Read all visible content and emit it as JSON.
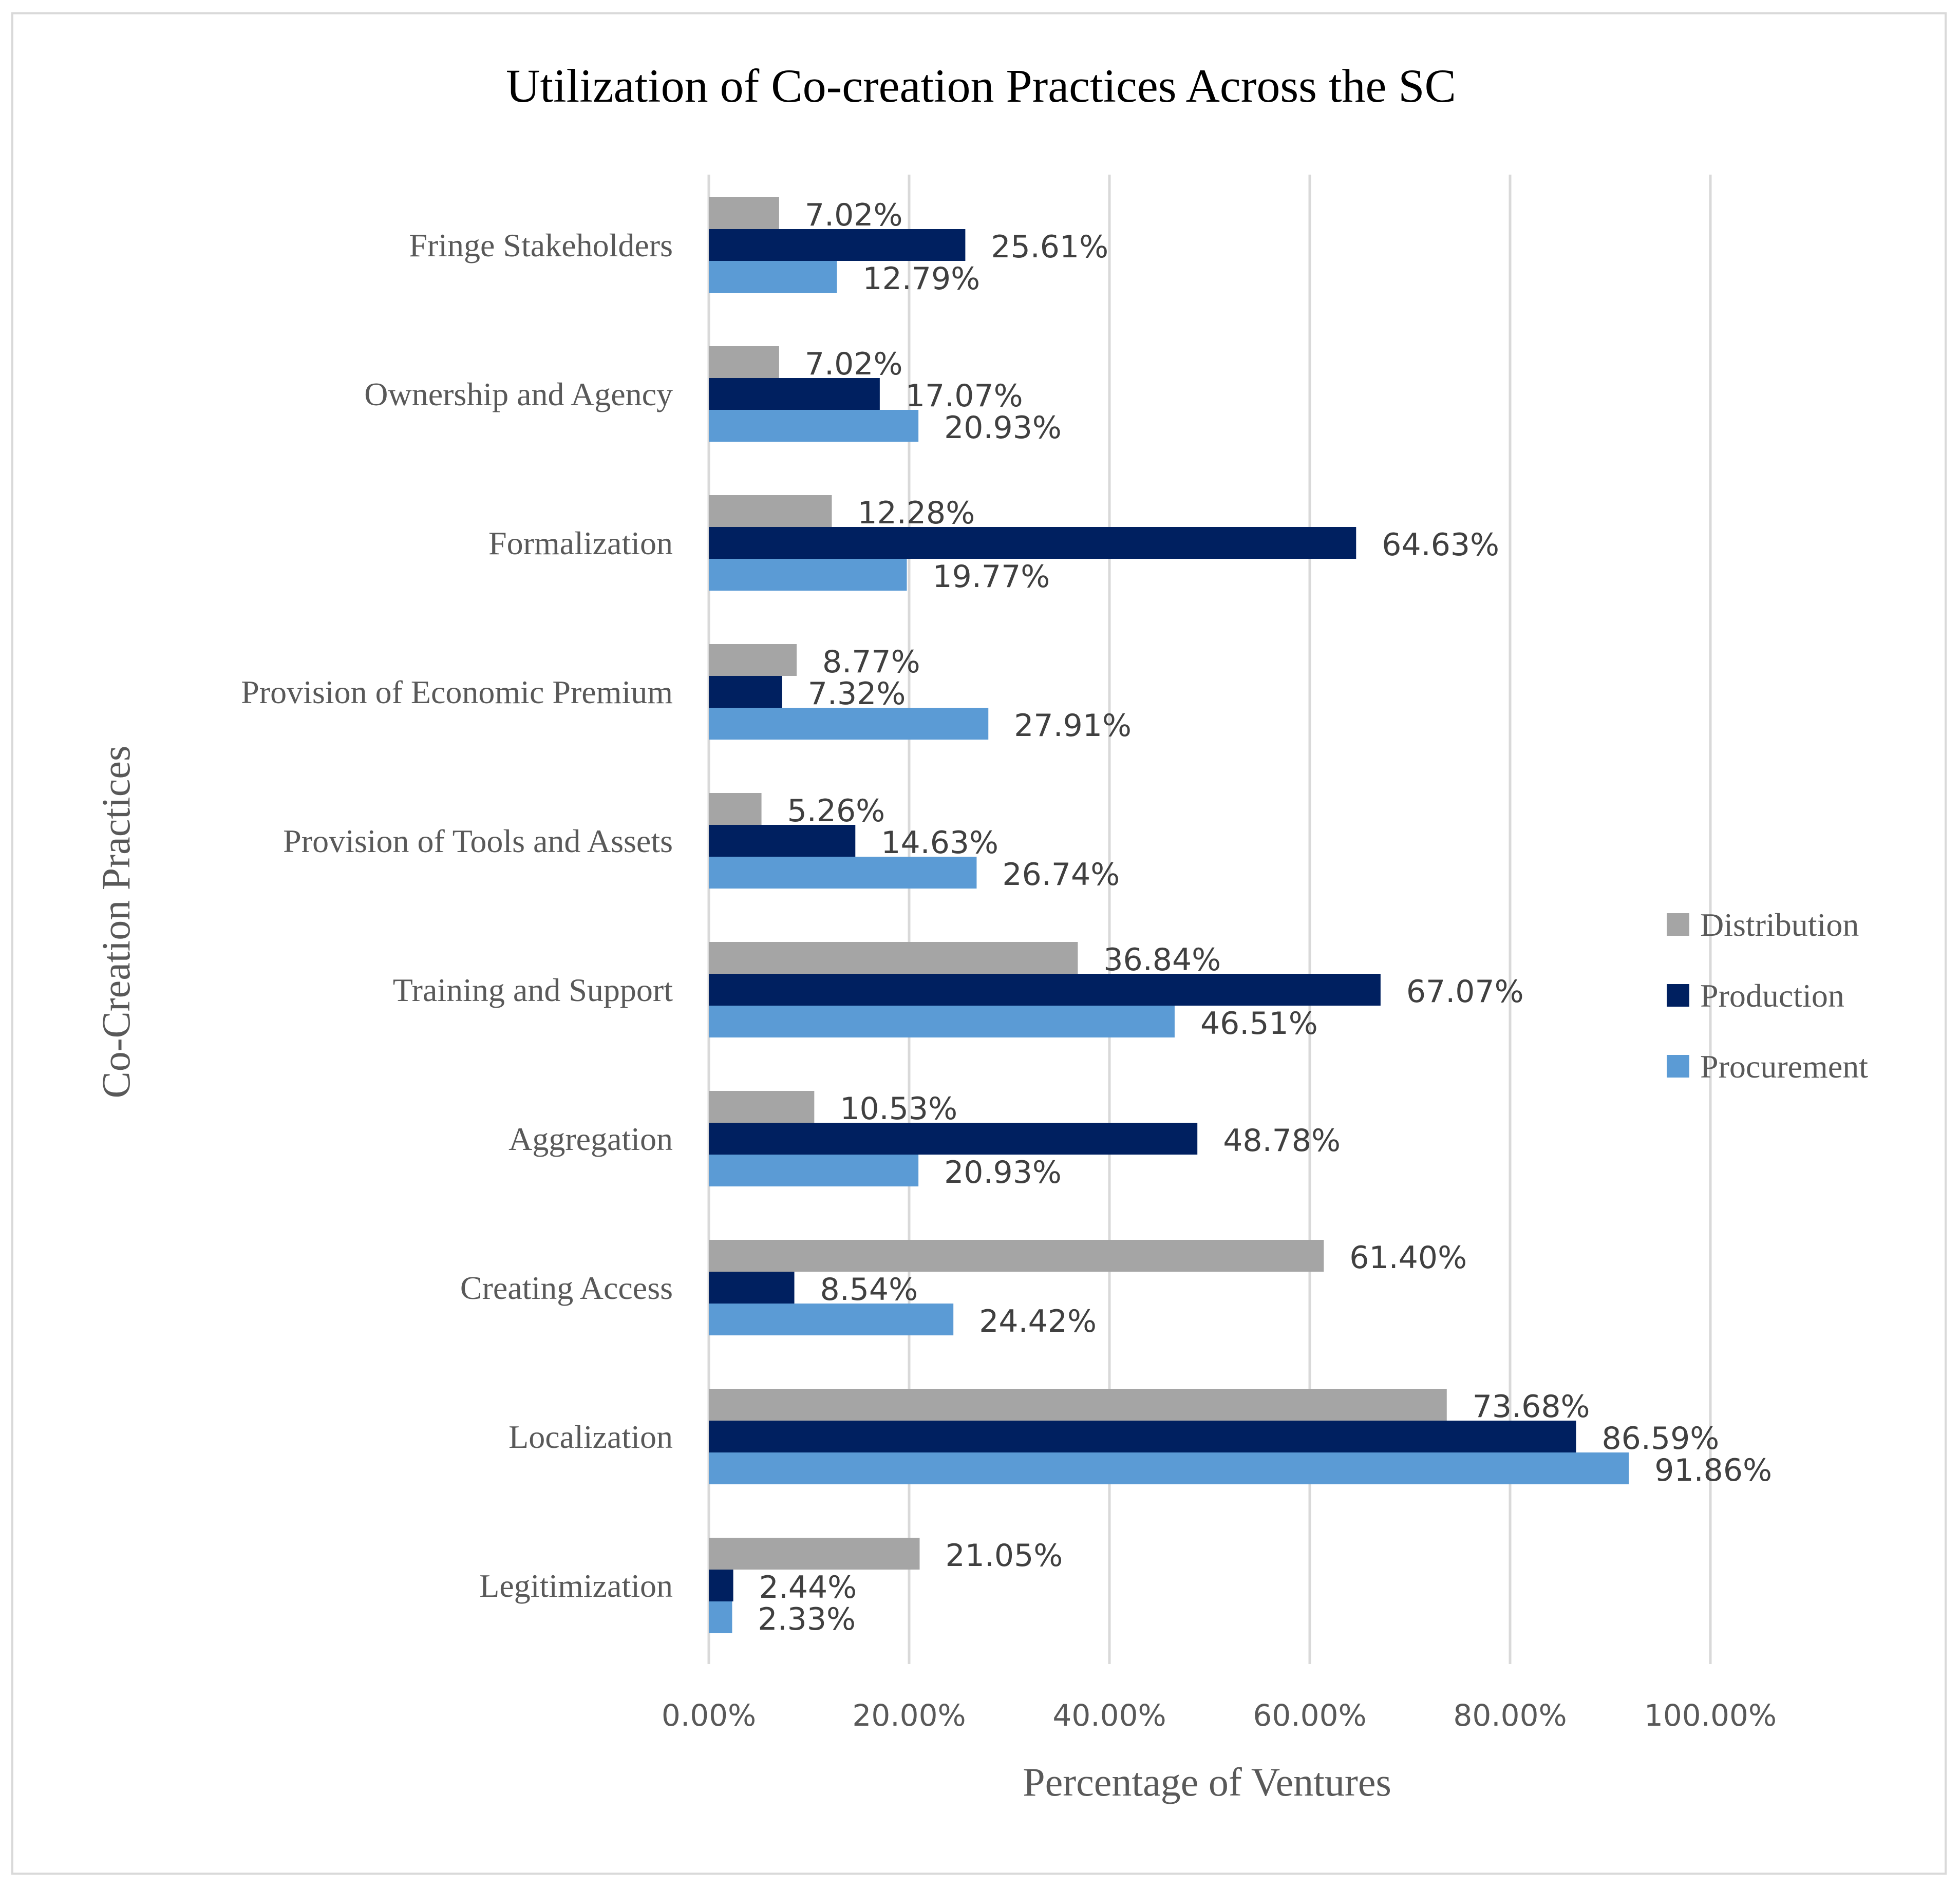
{
  "chart_data": {
    "type": "bar",
    "orientation": "horizontal",
    "title": "Utilization of Co-creation Practices Across the SC",
    "xlabel": "Percentage of Ventures",
    "ylabel": "Co-Creation Practices",
    "xlim": [
      0,
      100
    ],
    "xticks": [
      0,
      20,
      40,
      60,
      80,
      100
    ],
    "xtick_labels": [
      "0.00%",
      "20.00%",
      "40.00%",
      "60.00%",
      "80.00%",
      "100.00%"
    ],
    "grid": "vertical",
    "legend_position": "right",
    "categories": [
      "Fringe Stakeholders",
      "Ownership and Agency",
      "Formalization",
      "Provision of Economic Premium",
      "Provision of Tools and Assets",
      "Training and Support",
      "Aggregation",
      "Creating Access",
      "Localization",
      "Legitimization"
    ],
    "series": [
      {
        "name": "Distribution",
        "color": "#a5a5a5",
        "values": [
          7.02,
          7.02,
          12.28,
          8.77,
          5.26,
          36.84,
          10.53,
          61.4,
          73.68,
          21.05
        ],
        "labels": [
          "7.02%",
          "7.02%",
          "12.28%",
          "8.77%",
          "5.26%",
          "36.84%",
          "10.53%",
          "61.40%",
          "73.68%",
          "21.05%"
        ]
      },
      {
        "name": "Production",
        "color": "#002060",
        "values": [
          25.61,
          17.07,
          64.63,
          7.32,
          14.63,
          67.07,
          48.78,
          8.54,
          86.59,
          2.44
        ],
        "labels": [
          "25.61%",
          "17.07%",
          "64.63%",
          "7.32%",
          "14.63%",
          "67.07%",
          "48.78%",
          "8.54%",
          "86.59%",
          "2.44%"
        ]
      },
      {
        "name": "Procurement",
        "color": "#5b9bd5",
        "values": [
          12.79,
          20.93,
          19.77,
          27.91,
          26.74,
          46.51,
          20.93,
          24.42,
          91.86,
          2.33
        ],
        "labels": [
          "12.79%",
          "20.93%",
          "19.77%",
          "27.91%",
          "26.74%",
          "46.51%",
          "20.93%",
          "24.42%",
          "91.86%",
          "2.33%"
        ]
      }
    ]
  }
}
